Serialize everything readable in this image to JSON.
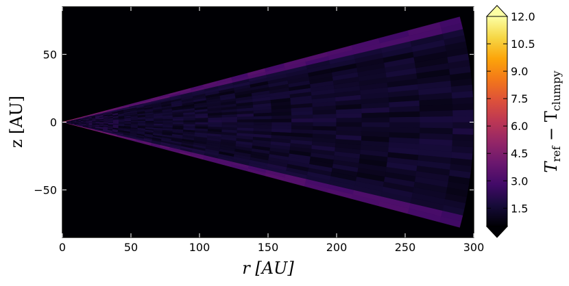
{
  "chart_data": {
    "type": "heatmap",
    "description_free": true,
    "xlabel": "r [AU]",
    "ylabel": "z [AU]",
    "xlim": [
      0,
      300
    ],
    "ylim": [
      -85,
      85
    ],
    "x_ticks": [
      0,
      50,
      100,
      150,
      200,
      250,
      300
    ],
    "x_tick_labels": [
      "0",
      "50",
      "100",
      "150",
      "200",
      "250",
      "300"
    ],
    "y_ticks": [
      50,
      0,
      -50
    ],
    "y_tick_labels": [
      "50",
      "0",
      "−50"
    ],
    "colormap": "inferno",
    "background_color": "#000004",
    "colorbar": {
      "label": "T_ref − T_clumpy",
      "label_main": "T",
      "label_sub1": "ref",
      "label_minus": " − T",
      "label_sub2": "clumpy",
      "vmin": 0.5,
      "vmax": 12.0,
      "ticks": [
        1.5,
        3.0,
        4.5,
        6.0,
        7.5,
        9.0,
        10.5,
        12.0
      ],
      "tick_labels": [
        "1.5",
        "3.0",
        "4.5",
        "6.0",
        "7.5",
        "9.0",
        "10.5",
        "12.0"
      ],
      "extend": "both"
    },
    "wedge": {
      "r_max": 300,
      "opening_half_angle_deg": 15
    },
    "data_summary": {
      "surface_layer_values": [
        {
          "r": 2,
          "value": 6.5
        },
        {
          "r": 15,
          "value": 4.8
        },
        {
          "r": 50,
          "value": 3.8
        },
        {
          "r": 100,
          "value": 3.5
        },
        {
          "r": 150,
          "value": 3.4
        },
        {
          "r": 200,
          "value": 3.3
        },
        {
          "r": 250,
          "value": 3.2
        },
        {
          "r": 290,
          "value": 3.1
        }
      ],
      "interior_value_range": [
        0.5,
        2.2
      ]
    }
  }
}
